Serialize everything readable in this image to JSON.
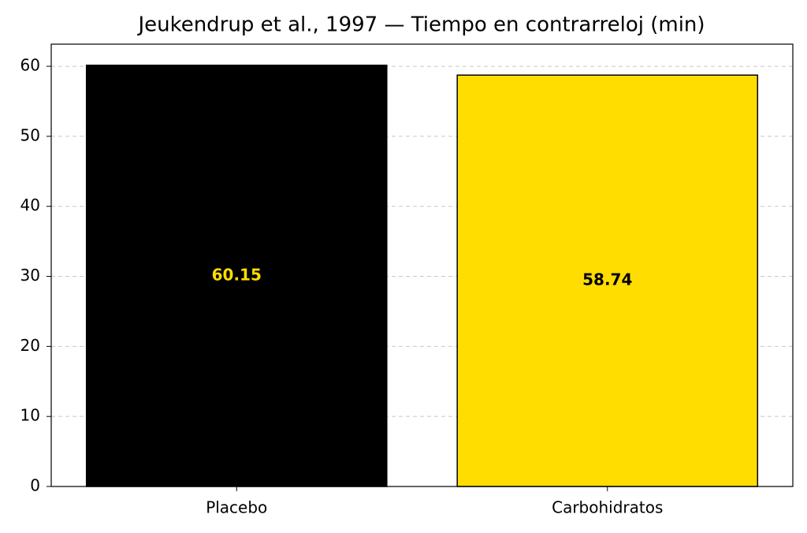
{
  "chart_data": {
    "type": "bar",
    "title": "Jeukendrup et al., 1997 — Tiempo en contrarreloj (min)",
    "categories": [
      "Placebo",
      "Carbohidratos"
    ],
    "values": [
      60.15,
      58.74
    ],
    "colors": [
      "#000000",
      "#ffdd00"
    ],
    "label_colors": [
      "#ffdd00",
      "#000000"
    ],
    "ylim": [
      0,
      63.16
    ],
    "yticks": [
      0,
      10,
      20,
      30,
      40,
      50,
      60
    ],
    "grid": true
  }
}
